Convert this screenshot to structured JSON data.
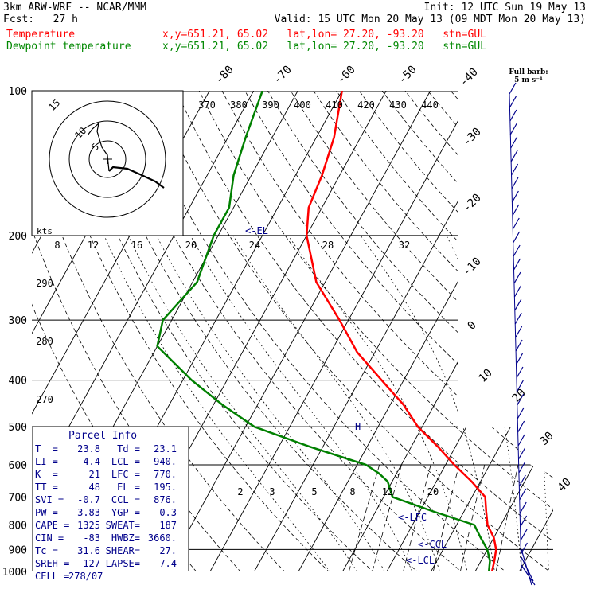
{
  "header": {
    "line1_left": "3km ARW-WRF -- NCAR/MMM",
    "line1_right": "Init: 12 UTC Sun 19 May 13",
    "line2_left": "Fcst:   27 h",
    "line2_right": "Valid: 15 UTC Mon 20 May 13 (09 MDT Mon 20 May 13)",
    "temp_label": "Temperature",
    "dew_label": "Dewpoint temperature",
    "temp_info": "x,y=651.21, 65.02   lat,lon= 27.20, -93.20   stn=GUL",
    "dew_info": "x,y=651.21, 65.02   lat,lon= 27.20, -93.20   stn=GUL"
  },
  "colors": {
    "temperature": "#ff0000",
    "dewpoint": "#008000",
    "barbs": "#00008b",
    "info": "#00008b"
  },
  "hodograph": {
    "units": "kts",
    "ring_labels": [
      "5",
      "10",
      "15"
    ],
    "height_labels": [
      "8",
      "12",
      "16",
      "20",
      "24",
      "28",
      "32"
    ]
  },
  "barb_legend": {
    "title": "Full barb:",
    "value": "5 m s⁻¹"
  },
  "level_markers": {
    "el": "<-EL",
    "lfc": "<-LFC",
    "ccl": "<-CCL",
    "lcl": "<-LCL",
    "h": "H"
  },
  "parcel_info": {
    "title": "Parcel Info",
    "rows": [
      [
        "T  =",
        "23.8",
        "Td =",
        "23.1"
      ],
      [
        "LI =",
        "-4.4",
        "LCL =",
        "940."
      ],
      [
        "K  =",
        "21",
        "LFC =",
        "770."
      ],
      [
        "TT =",
        "48",
        "EL =",
        "195."
      ],
      [
        "SVI =",
        "-0.7",
        "CCL =",
        "876."
      ],
      [
        "PW =",
        "3.83",
        "YGP =",
        "0.3"
      ],
      [
        "CAPE =",
        "1325",
        "SWEAT=",
        "187"
      ],
      [
        "CIN =",
        "-83",
        "HWBZ=",
        "3660."
      ],
      [
        "Tc =",
        "31.6",
        "SHEAR=",
        "27."
      ],
      [
        "SREH =",
        "127",
        "LAPSE=",
        "7.4"
      ],
      [
        "CELL =",
        "278/07",
        "",
        ""
      ]
    ]
  },
  "chart_data": {
    "type": "line",
    "xlabel": "",
    "ylabel": "",
    "pressure_levels": [
      100,
      200,
      300,
      400,
      500,
      600,
      700,
      800,
      900,
      1000
    ],
    "isotherm_labels": [
      "-80",
      "-70",
      "-60",
      "-50",
      "-40",
      "-30",
      "-20",
      "-10",
      "0",
      "10",
      "20",
      "30",
      "40"
    ],
    "theta_labels_top": [
      "370",
      "380",
      "390",
      "400",
      "410",
      "420",
      "430",
      "440"
    ],
    "theta_labels_left": [
      "290",
      "280",
      "270"
    ],
    "mixing_ratio_labels_upper": [
      "8",
      "12",
      "16",
      "20",
      "24",
      "28",
      "32"
    ],
    "mixing_ratio_labels_lower": [
      "2",
      "3",
      "5",
      "8",
      "12",
      "20"
    ],
    "series": [
      {
        "name": "Temperature",
        "color": "#ff0000",
        "points": [
          [
            100,
            -70
          ],
          [
            125,
            -66
          ],
          [
            150,
            -64
          ],
          [
            175,
            -63
          ],
          [
            200,
            -60
          ],
          [
            250,
            -52
          ],
          [
            300,
            -42
          ],
          [
            350,
            -34
          ],
          [
            400,
            -25
          ],
          [
            450,
            -17
          ],
          [
            500,
            -11
          ],
          [
            550,
            -4
          ],
          [
            600,
            2
          ],
          [
            650,
            8
          ],
          [
            700,
            13
          ],
          [
            750,
            15
          ],
          [
            800,
            17
          ],
          [
            850,
            20
          ],
          [
            900,
            22
          ],
          [
            950,
            23
          ],
          [
            1000,
            23.8
          ]
        ]
      },
      {
        "name": "Dewpoint temperature",
        "color": "#008000",
        "points": [
          [
            100,
            -88
          ],
          [
            125,
            -86
          ],
          [
            150,
            -84
          ],
          [
            175,
            -81
          ],
          [
            200,
            -81
          ],
          [
            250,
            -79
          ],
          [
            300,
            -82
          ],
          [
            340,
            -80
          ],
          [
            400,
            -68
          ],
          [
            450,
            -58
          ],
          [
            500,
            -48
          ],
          [
            550,
            -33
          ],
          [
            600,
            -18
          ],
          [
            625,
            -14
          ],
          [
            650,
            -11
          ],
          [
            700,
            -8
          ],
          [
            750,
            3
          ],
          [
            800,
            14
          ],
          [
            850,
            17
          ],
          [
            900,
            20
          ],
          [
            950,
            22
          ],
          [
            1000,
            23.1
          ]
        ]
      }
    ]
  }
}
